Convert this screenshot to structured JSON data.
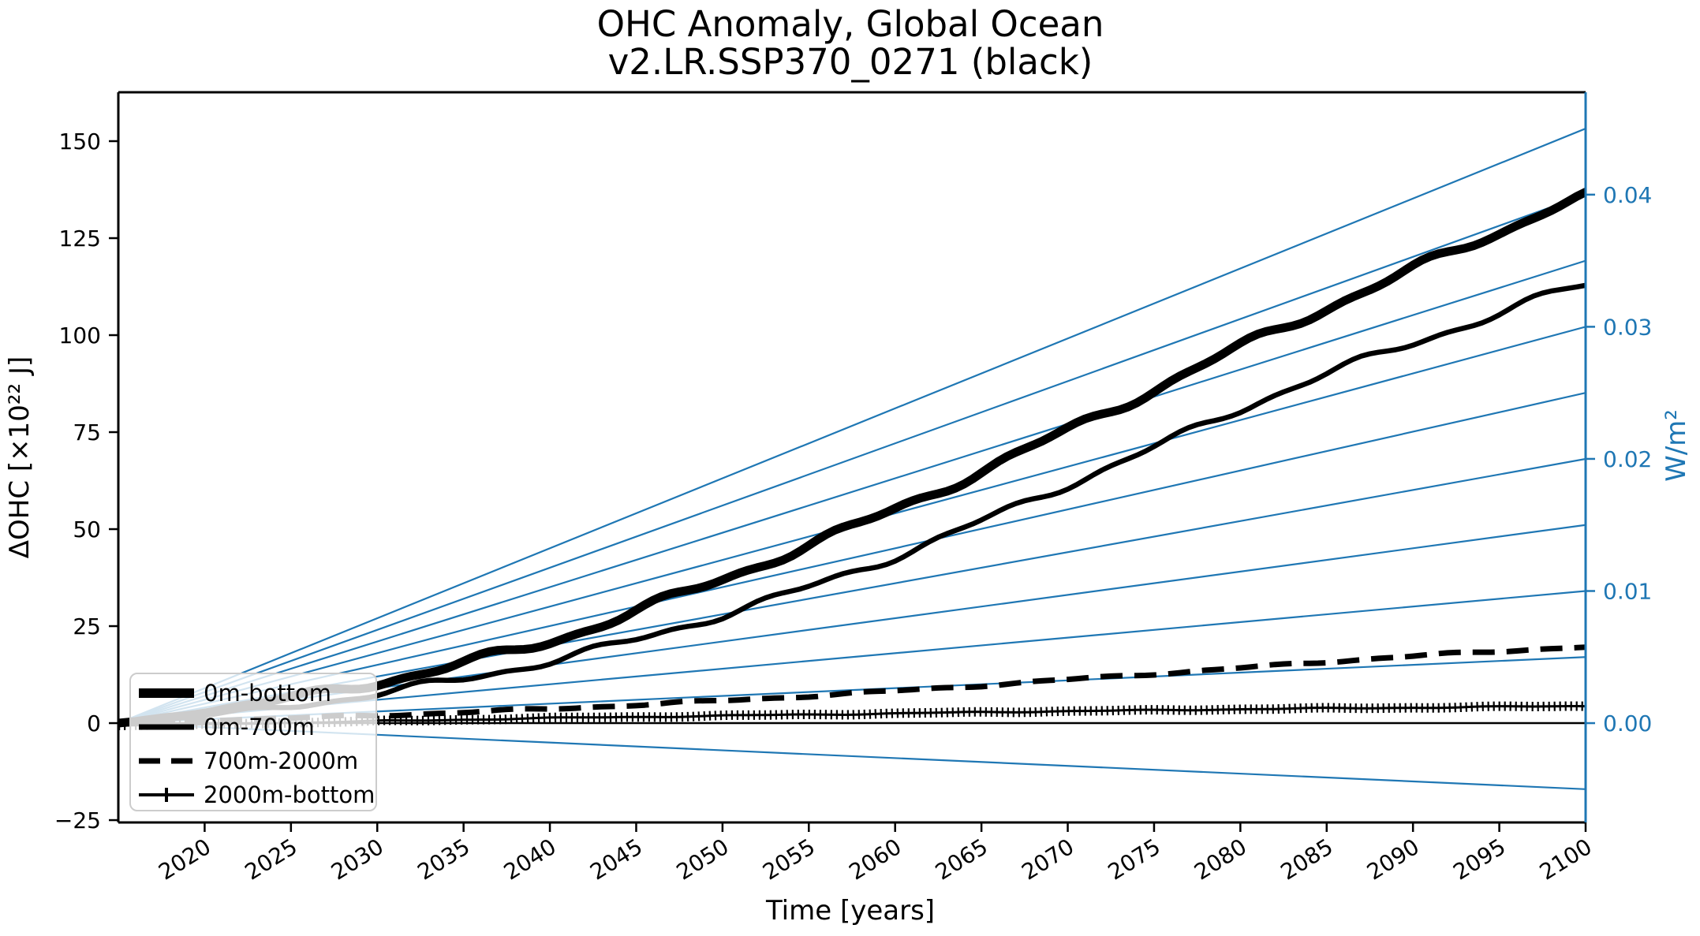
{
  "title": {
    "line1": "OHC Anomaly, Global Ocean",
    "line2": "v2.LR.SSP370_0271 (black)"
  },
  "chart_data": {
    "type": "line",
    "title": "OHC Anomaly, Global Ocean\nv2.LR.SSP370_0271 (black)",
    "xlabel": "Time [years]",
    "grid": false,
    "colors": {
      "curves": "#000000",
      "reference_lines": "#1f77b4",
      "right_axis": "#1f77b4",
      "zero_line": "#000000",
      "legend_border": "#cccccc"
    },
    "axes": {
      "x": {
        "label": "Time [years]",
        "range": [
          2015,
          2100
        ],
        "ticks": [
          2020,
          2025,
          2030,
          2035,
          2040,
          2045,
          2050,
          2055,
          2060,
          2065,
          2070,
          2075,
          2080,
          2085,
          2090,
          2095,
          2100
        ],
        "tick_labels": [
          "2020",
          "2025",
          "2030",
          "2035",
          "2040",
          "2045",
          "2050",
          "2055",
          "2060",
          "2065",
          "2070",
          "2075",
          "2080",
          "2085",
          "2090",
          "2095",
          "2100"
        ],
        "tick_rotation_deg": 30
      },
      "y_left": {
        "label": "ΔOHC [×10²² J]",
        "range": [
          -25.6,
          162.6
        ],
        "ticks": [
          -25,
          0,
          25,
          50,
          75,
          100,
          125,
          150
        ],
        "tick_labels": [
          "−25",
          "0",
          "25",
          "50",
          "75",
          "100",
          "125",
          "150"
        ]
      },
      "y_right": {
        "label": "W/m²",
        "range": [
          -0.00752,
          0.04775
        ],
        "ticks": [
          0.0,
          0.01,
          0.02,
          0.03,
          0.04
        ],
        "tick_labels": [
          "0.00",
          "0.01",
          "0.02",
          "0.03",
          "0.04"
        ]
      }
    },
    "series": [
      {
        "name": "0m-bottom",
        "style": "solid-extra-thick",
        "line_width": 11,
        "years": [
          2015,
          2020,
          2025,
          2030,
          2035,
          2040,
          2045,
          2050,
          2055,
          2060,
          2065,
          2070,
          2075,
          2080,
          2085,
          2090,
          2095,
          2100
        ],
        "values_1e22J": [
          0,
          3,
          6.5,
          10.5,
          15.5,
          21,
          29,
          37,
          46,
          55,
          65,
          75.5,
          86,
          97,
          107,
          117,
          126.5,
          136
        ]
      },
      {
        "name": "0m-700m",
        "style": "solid",
        "line_width": 6.5,
        "years": [
          2015,
          2020,
          2025,
          2030,
          2035,
          2040,
          2045,
          2050,
          2055,
          2060,
          2065,
          2070,
          2075,
          2080,
          2085,
          2090,
          2095,
          2100
        ],
        "values_1e22J": [
          0,
          2,
          4.5,
          7.5,
          11.5,
          16,
          21.5,
          28,
          35,
          43,
          52,
          61.5,
          71,
          81,
          90,
          98,
          105.5,
          113
        ]
      },
      {
        "name": "700m-2000m",
        "style": "dashed",
        "line_width": 7,
        "years": [
          2015,
          2020,
          2025,
          2030,
          2035,
          2040,
          2045,
          2050,
          2055,
          2060,
          2065,
          2070,
          2075,
          2080,
          2085,
          2090,
          2095,
          2100
        ],
        "values_1e22J": [
          0,
          0.7,
          1.3,
          2,
          2.8,
          3.7,
          4.7,
          5.8,
          7,
          8.3,
          9.7,
          11.2,
          12.7,
          14.2,
          15.8,
          17.3,
          18.5,
          19.7
        ]
      },
      {
        "name": "2000m-bottom",
        "style": "solid-with-plus-markers",
        "line_width": 3,
        "years": [
          2015,
          2020,
          2025,
          2030,
          2035,
          2040,
          2045,
          2050,
          2055,
          2060,
          2065,
          2070,
          2075,
          2080,
          2085,
          2090,
          2095,
          2100
        ],
        "values_1e22J": [
          -0.6,
          -0.3,
          0.1,
          0.5,
          0.9,
          1.3,
          1.6,
          1.9,
          2.2,
          2.5,
          2.8,
          3.1,
          3.3,
          3.6,
          3.8,
          4.0,
          4.2,
          4.4
        ]
      }
    ],
    "reference_lines": {
      "description": "Blue straight guide lines fanning from (2015, 0) to 2100, labeled by right axis in W/m²",
      "origin_year": 2015,
      "origin_value": 0,
      "end_year": 2100,
      "slopes_w_m2": [
        0.045,
        0.04,
        0.035,
        0.03,
        0.025,
        0.02,
        0.015,
        0.01,
        0.005,
        -0.005
      ]
    },
    "zero_line_value": 0,
    "legend": {
      "position": "lower left",
      "entries": [
        {
          "label": "0m-bottom",
          "style": "solid-extra-thick"
        },
        {
          "label": "0m-700m",
          "style": "solid"
        },
        {
          "label": "700m-2000m",
          "style": "dashed"
        },
        {
          "label": "2000m-bottom",
          "style": "solid-with-plus-markers"
        }
      ]
    }
  }
}
